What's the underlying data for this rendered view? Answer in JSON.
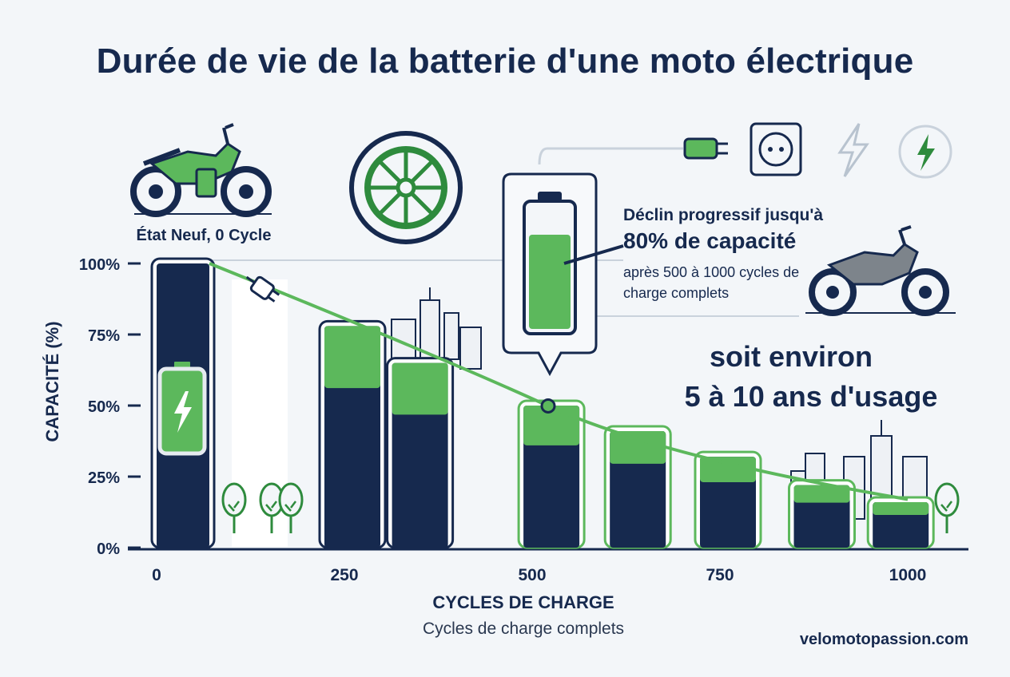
{
  "header": {
    "title": "Durée de vie de la batterie d'une moto électrique"
  },
  "state_caption": "État Neuf, 0 Cycle",
  "callout": {
    "line1": "Déclin progressif jusqu'à",
    "line2": "80% de capacité",
    "line3": "après 500 à 1000 cycles de charge complets"
  },
  "usage": {
    "line1": "soit environ",
    "line2": "5 à 10 ans d'usage"
  },
  "footer": {
    "site": "velomotopassion.com"
  },
  "colors": {
    "navy": "#16294e",
    "green": "#5cb85c",
    "dark_green": "#2e8b3d",
    "background": "#f3f6f9"
  },
  "chart_data": {
    "type": "bar",
    "title": "Durée de vie de la batterie d'une moto électrique",
    "ylabel": "CAPACITÉ (%)",
    "xlabel": "CYCLES DE CHARGE",
    "xsublabel": "Cycles de charge complets",
    "ylim": [
      0,
      100
    ],
    "yticks": [
      "100%",
      "75%",
      "50%",
      "25%",
      "0%"
    ],
    "ytick_values": [
      100,
      75,
      50,
      25,
      0
    ],
    "xticks": [
      "0",
      "250",
      "500",
      "750",
      "1000"
    ],
    "xtick_values": [
      0,
      250,
      500,
      750,
      1000
    ],
    "xlim": [
      0,
      1000
    ],
    "bars": [
      {
        "cycles": 0,
        "value": 100
      },
      {
        "cycles": 250,
        "value": 78
      },
      {
        "cycles": 340,
        "value": 65
      },
      {
        "cycles": 515,
        "value": 50
      },
      {
        "cycles": 630,
        "value": 41
      },
      {
        "cycles": 750,
        "value": 32
      },
      {
        "cycles": 875,
        "value": 22
      },
      {
        "cycles": 980,
        "value": 16
      }
    ],
    "trend_line": {
      "x": [
        0,
        500,
        1000
      ],
      "y": [
        100,
        51,
        17
      ]
    }
  },
  "icons": [
    "motorcycle-new-icon",
    "wheel-icon",
    "plug-icon",
    "socket-icon",
    "lightning-outline-icon",
    "lightning-circle-icon",
    "battery-callout-icon",
    "motorcycle-grey-icon",
    "city-icon",
    "tree-icon"
  ]
}
